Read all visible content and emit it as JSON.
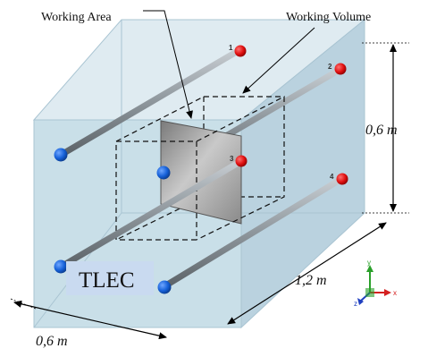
{
  "labels": {
    "working_area": "Working Area",
    "working_volume": "Working Volume",
    "height": "0,6 m",
    "length": "1,2 m",
    "width": "0,6 m",
    "device": "TLEC"
  },
  "electrodes": [
    {
      "number": "1"
    },
    {
      "number": "2"
    },
    {
      "number": "3"
    },
    {
      "number": "4"
    }
  ],
  "axes": {
    "x": "x",
    "y": "y",
    "z": "z"
  },
  "colors": {
    "box_front": "#c3dbe6",
    "box_side": "#b2cddb",
    "box_top": "#dbe9f0",
    "rod": "#8e969c",
    "electrode_red": "#e01010",
    "electrode_blue": "#1560d8",
    "plate": "#9a9a9a",
    "tlec_bg": "#c9daf0",
    "axis_x": "#d42020",
    "axis_y": "#2aa02a",
    "axis_z": "#2040c0"
  }
}
